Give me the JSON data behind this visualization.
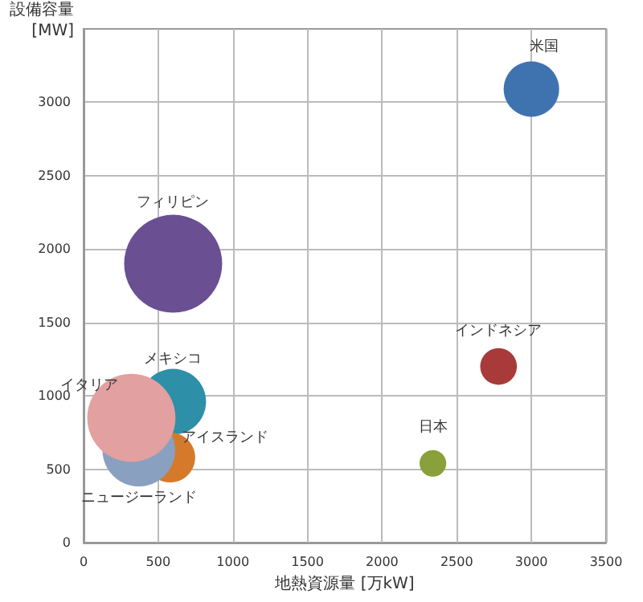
{
  "chart_data": {
    "type": "bubble",
    "xlabel": "地熱資源量 [万kW]",
    "ylabel": "設備容量\n[MW]",
    "xlim": [
      0,
      3500
    ],
    "xticks": [
      0,
      500,
      1000,
      1500,
      2000,
      2500,
      3000,
      3500
    ],
    "ylim": [
      0,
      3500
    ],
    "yticks": [
      0,
      500,
      1000,
      1500,
      2000,
      2500,
      3000
    ],
    "grid": true,
    "legend": false,
    "series": [
      {
        "name": "米国",
        "color": "#3f73b0",
        "x": [
          3000
        ],
        "values": [
          3090
        ],
        "sizes": [
          0.32
        ]
      },
      {
        "name": "フィリピン",
        "color": "#6a4f93",
        "x": [
          600
        ],
        "values": [
          1900
        ],
        "sizes": [
          1
        ]
      },
      {
        "name": "インドネシア",
        "color": "#a83a3a",
        "x": [
          2780
        ],
        "values": [
          1200
        ],
        "sizes": [
          0.14
        ]
      },
      {
        "name": "日本",
        "color": "#8aa03a",
        "x": [
          2340
        ],
        "values": [
          540
        ],
        "sizes": [
          0.074
        ]
      },
      {
        "name": "メキシコ",
        "color": "#2e8fa8",
        "x": [
          600
        ],
        "values": [
          960
        ],
        "sizes": [
          0.45
        ]
      },
      {
        "name": "アイスランド",
        "color": "#d47a2a",
        "x": [
          580
        ],
        "values": [
          580
        ],
        "sizes": [
          0.26
        ]
      },
      {
        "name": "ニュージーランド",
        "color": "#8aa0c0",
        "x": [
          370
        ],
        "values": [
          630
        ],
        "sizes": [
          0.55
        ]
      },
      {
        "name": "イタリア",
        "color": "#e2a0a0",
        "x": [
          320
        ],
        "values": [
          850
        ],
        "sizes": [
          0.81
        ]
      }
    ]
  }
}
